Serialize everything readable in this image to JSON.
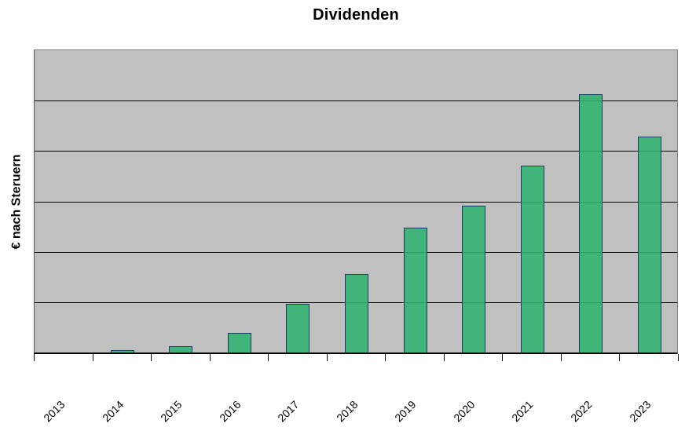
{
  "chart_data": {
    "type": "bar",
    "title": "Dividenden",
    "ylabel": "€ nach Steruern",
    "xlabel": "",
    "categories": [
      "2013",
      "2014",
      "2015",
      "2016",
      "2017",
      "2018",
      "2019",
      "2020",
      "2021",
      "2022",
      "2023"
    ],
    "values": [
      0,
      0.04,
      0.12,
      0.39,
      0.96,
      1.56,
      2.48,
      2.91,
      3.71,
      5.13,
      4.28
    ],
    "ylim": [
      0,
      6
    ],
    "y_tick_labels": [],
    "units_note": "y axis has no numeric tick labels; values measured in unlabeled gridline intervals (5 internal horizontal gridlines, 6 equal bands)",
    "grid": "horizontal",
    "legend": "none",
    "colors": {
      "bar_fill": "#2DB26E",
      "bar_border": "#1F3864",
      "plot_background": "#C0C0C0",
      "gridline": "#000000",
      "text": "#000000"
    }
  }
}
